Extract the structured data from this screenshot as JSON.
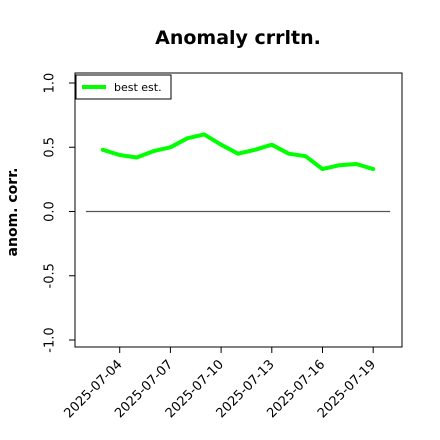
{
  "chart_data": {
    "type": "line",
    "title": "Anomaly crrltn.",
    "xlabel": "",
    "ylabel": "anom. corr.",
    "ylim": [
      -1.0,
      1.0
    ],
    "yticks": [
      -1.0,
      -0.5,
      0.0,
      0.5,
      1.0
    ],
    "ytick_labels": [
      "-1.0",
      "-0.5",
      "0.0",
      "0.5",
      "1.0"
    ],
    "xlim": [
      "2025-07-01",
      "2025-07-21"
    ],
    "xticks": [
      "2025-07-04",
      "2025-07-07",
      "2025-07-10",
      "2025-07-13",
      "2025-07-16",
      "2025-07-19"
    ],
    "reference_line": {
      "y": 0.0,
      "from": "2025-07-02",
      "to": "2025-07-20",
      "color": "#555555"
    },
    "legend": {
      "position": "top-left"
    },
    "grid": false,
    "series": [
      {
        "name": "best est.",
        "color": "#00ff00",
        "x": [
          "2025-07-03",
          "2025-07-04",
          "2025-07-05",
          "2025-07-06",
          "2025-07-07",
          "2025-07-08",
          "2025-07-09",
          "2025-07-10",
          "2025-07-11",
          "2025-07-12",
          "2025-07-13",
          "2025-07-14",
          "2025-07-15",
          "2025-07-16",
          "2025-07-17",
          "2025-07-18",
          "2025-07-19"
        ],
        "values": [
          0.48,
          0.44,
          0.42,
          0.47,
          0.5,
          0.57,
          0.6,
          0.52,
          0.45,
          0.48,
          0.52,
          0.45,
          0.43,
          0.33,
          0.36,
          0.37,
          0.33
        ]
      }
    ]
  }
}
